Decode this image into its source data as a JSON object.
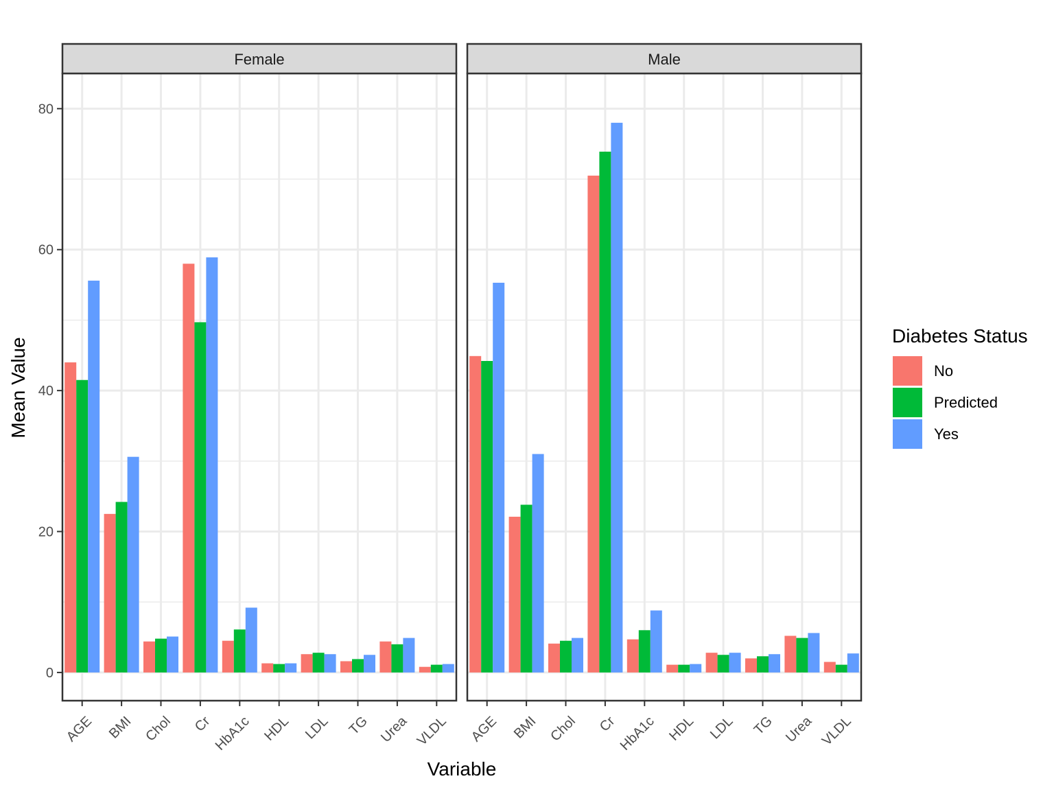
{
  "chart_data": {
    "type": "bar",
    "xlabel": "Variable",
    "ylabel": "Mean Value",
    "ylim": [
      -4,
      85
    ],
    "yticks": [
      0,
      20,
      40,
      60,
      80
    ],
    "grid": true,
    "legend_position": "right",
    "legend": {
      "title": "Diabetes Status",
      "entries": [
        "No",
        "Predicted",
        "Yes"
      ]
    },
    "colors": {
      "No": "#F8766D",
      "Predicted": "#00BA38",
      "Yes": "#619CFF"
    },
    "categories": [
      "AGE",
      "BMI",
      "Chol",
      "Cr",
      "HbA1c",
      "HDL",
      "LDL",
      "TG",
      "Urea",
      "VLDL"
    ],
    "panels": [
      {
        "label": "Female",
        "series": [
          {
            "name": "No",
            "values": [
              44.0,
              22.5,
              4.4,
              58.0,
              4.5,
              1.3,
              2.6,
              1.6,
              4.4,
              0.8
            ]
          },
          {
            "name": "Predicted",
            "values": [
              41.5,
              24.2,
              4.8,
              49.7,
              6.1,
              1.2,
              2.8,
              1.9,
              4.0,
              1.1
            ]
          },
          {
            "name": "Yes",
            "values": [
              55.6,
              30.6,
              5.1,
              58.9,
              9.2,
              1.3,
              2.6,
              2.5,
              4.9,
              1.2
            ]
          }
        ]
      },
      {
        "label": "Male",
        "series": [
          {
            "name": "No",
            "values": [
              44.9,
              22.1,
              4.1,
              70.5,
              4.7,
              1.1,
              2.8,
              2.0,
              5.2,
              1.5
            ]
          },
          {
            "name": "Predicted",
            "values": [
              44.2,
              23.8,
              4.5,
              73.9,
              6.0,
              1.1,
              2.5,
              2.3,
              4.9,
              1.1
            ]
          },
          {
            "name": "Yes",
            "values": [
              55.3,
              31.0,
              4.9,
              78.0,
              8.8,
              1.2,
              2.8,
              2.6,
              5.6,
              2.7
            ]
          }
        ]
      }
    ]
  }
}
